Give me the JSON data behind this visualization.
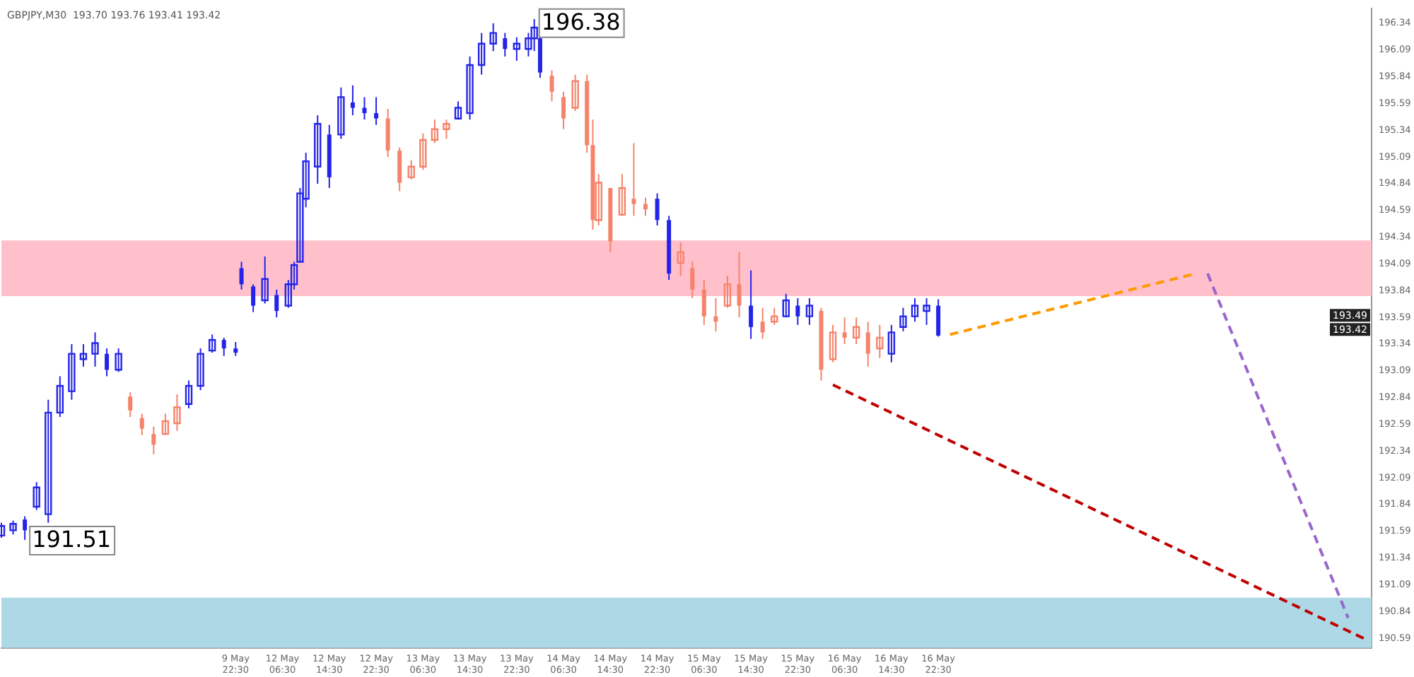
{
  "chart_data": {
    "type": "candlestick",
    "title": "GBPJPY,M30  193.70 193.76 193.41 193.42",
    "categories": [
      null,
      null,
      null,
      null,
      null,
      null,
      null,
      null,
      null,
      null,
      null,
      null,
      null,
      null,
      null,
      null,
      null,
      null,
      null,
      null,
      null,
      null,
      null,
      null,
      null,
      null,
      null,
      null,
      null,
      null,
      null,
      null,
      null,
      null,
      null,
      null,
      null,
      null,
      null,
      null,
      "9 May 22:30",
      null,
      null,
      null,
      null,
      null,
      null,
      null,
      "12 May 06:30",
      null,
      null,
      null,
      null,
      null,
      null,
      null,
      "12 May 14:30",
      null,
      null,
      null,
      null,
      null,
      null,
      null,
      "12 May 22:30",
      null,
      null,
      null,
      null,
      null,
      null,
      null,
      "13 May 06:30",
      null,
      null,
      null,
      null,
      null,
      null,
      null,
      "13 May 14:30",
      null,
      null,
      null,
      null,
      null,
      null,
      null,
      "13 May 22:30",
      null,
      null,
      null,
      null,
      null,
      null,
      null,
      "14 May 06:30",
      null,
      null,
      null,
      null,
      null,
      null,
      null,
      "14 May 14:30",
      null,
      null,
      null,
      null,
      null,
      null,
      null,
      "14 May 22:30",
      null,
      null,
      null,
      null,
      null,
      null,
      null,
      "15 May 06:30",
      null,
      null,
      null,
      null,
      null,
      null,
      null,
      "15 May 14:30",
      null,
      null,
      null,
      null,
      null,
      null,
      null,
      "15 May 22:30",
      null,
      null,
      null,
      null,
      null,
      null,
      null,
      "16 May 06:30",
      null,
      null,
      null,
      null,
      null,
      null,
      null,
      "16 May 14:30",
      null,
      null,
      null,
      null,
      null,
      null,
      null,
      "16 May 22:30",
      null,
      null,
      null,
      null,
      null,
      null,
      null,
      null,
      null,
      null,
      null,
      null,
      null,
      null,
      null,
      null,
      null,
      null,
      null,
      null,
      null,
      null,
      null,
      null,
      null,
      null,
      null,
      null,
      null,
      null,
      null,
      null,
      null,
      null,
      null,
      null,
      null,
      null,
      null,
      null,
      null,
      null,
      null,
      null,
      null,
      null,
      null,
      null,
      null,
      null,
      null,
      null,
      null,
      null,
      null,
      null,
      null,
      null,
      null,
      null,
      null,
      null,
      null,
      null,
      null,
      null,
      null,
      null,
      null,
      null,
      null,
      null,
      null,
      null
    ],
    "ohlc": [
      [
        191.55,
        191.67,
        191.53,
        191.64
      ],
      null,
      [
        191.6,
        191.69,
        191.56,
        191.66
      ],
      null,
      [
        191.7,
        191.73,
        191.51,
        191.6
      ],
      null,
      [
        191.82,
        192.05,
        191.79,
        192.0
      ],
      null,
      [
        191.75,
        192.82,
        191.67,
        192.7
      ],
      null,
      [
        192.7,
        193.04,
        192.66,
        192.95
      ],
      null,
      [
        192.9,
        193.34,
        192.82,
        193.25
      ],
      null,
      [
        193.2,
        193.34,
        193.13,
        193.25
      ],
      null,
      [
        193.25,
        193.45,
        193.13,
        193.35
      ],
      null,
      [
        193.25,
        193.3,
        193.04,
        193.1
      ],
      null,
      [
        193.1,
        193.3,
        193.08,
        193.25
      ],
      null,
      [
        192.85,
        192.89,
        192.66,
        192.72
      ],
      null,
      [
        192.65,
        192.69,
        192.49,
        192.55
      ],
      null,
      [
        192.5,
        192.57,
        192.31,
        192.4
      ],
      null,
      [
        192.5,
        192.69,
        192.49,
        192.62
      ],
      null,
      [
        192.6,
        192.87,
        192.53,
        192.75
      ],
      null,
      [
        192.78,
        193.0,
        192.74,
        192.95
      ],
      null,
      [
        192.95,
        193.3,
        192.91,
        193.25
      ],
      null,
      [
        193.28,
        193.43,
        193.26,
        193.38
      ],
      null,
      [
        193.38,
        193.4,
        193.23,
        193.3
      ],
      null,
      [
        193.3,
        193.36,
        193.23,
        193.26
      ],
      [
        194.05,
        194.11,
        193.85,
        193.9
      ],
      null,
      [
        193.88,
        193.9,
        193.64,
        193.7
      ],
      null,
      [
        193.75,
        194.16,
        193.72,
        193.95
      ],
      null,
      [
        193.8,
        193.85,
        193.59,
        193.65
      ],
      null,
      [
        193.7,
        193.94,
        193.68,
        193.9
      ],
      [
        193.9,
        194.11,
        193.85,
        194.08
      ],
      [
        194.11,
        194.8,
        194.11,
        194.75
      ],
      [
        194.7,
        195.13,
        194.62,
        195.05
      ],
      null,
      [
        195.0,
        195.48,
        194.84,
        195.4
      ],
      null,
      [
        195.3,
        195.39,
        194.8,
        194.9
      ],
      null,
      [
        195.3,
        195.74,
        195.26,
        195.65
      ],
      null,
      [
        195.6,
        195.76,
        195.48,
        195.55
      ],
      null,
      [
        195.55,
        195.65,
        195.44,
        195.5
      ],
      null,
      [
        195.5,
        195.65,
        195.39,
        195.45
      ],
      null,
      [
        195.45,
        195.54,
        195.09,
        195.15
      ],
      null,
      [
        195.15,
        195.18,
        194.77,
        194.85
      ],
      null,
      [
        194.9,
        195.06,
        194.88,
        195.0
      ],
      null,
      [
        195.0,
        195.31,
        194.97,
        195.25
      ],
      null,
      [
        195.25,
        195.44,
        195.22,
        195.35
      ],
      null,
      [
        195.35,
        195.44,
        195.26,
        195.4
      ],
      null,
      [
        195.45,
        195.61,
        195.44,
        195.55
      ],
      null,
      [
        195.5,
        196.03,
        195.44,
        195.95
      ],
      null,
      [
        195.95,
        196.25,
        195.86,
        196.15
      ],
      null,
      [
        196.15,
        196.34,
        196.08,
        196.25
      ],
      null,
      [
        196.2,
        196.25,
        196.03,
        196.1
      ],
      null,
      [
        196.1,
        196.21,
        195.99,
        196.15
      ],
      null,
      [
        196.1,
        196.25,
        196.03,
        196.2
      ],
      [
        196.2,
        196.38,
        196.08,
        196.3
      ],
      [
        196.2,
        196.21,
        195.83,
        195.88
      ],
      null,
      [
        195.85,
        195.9,
        195.61,
        195.7
      ],
      null,
      [
        195.65,
        195.7,
        195.35,
        195.45
      ],
      null,
      [
        195.55,
        195.86,
        195.52,
        195.8
      ],
      null,
      [
        195.8,
        195.86,
        195.13,
        195.2
      ],
      [
        195.2,
        195.44,
        194.41,
        194.5
      ],
      [
        194.5,
        194.93,
        194.45,
        194.85
      ],
      null,
      [
        194.8,
        194.8,
        194.2,
        194.3
      ],
      null,
      [
        194.55,
        194.93,
        194.54,
        194.8
      ],
      null,
      [
        194.7,
        195.22,
        194.54,
        194.65
      ],
      null,
      [
        194.65,
        194.71,
        194.54,
        194.6
      ],
      null,
      [
        194.7,
        194.75,
        194.45,
        194.5
      ],
      null,
      [
        194.5,
        194.54,
        193.94,
        194.0
      ],
      null,
      [
        194.1,
        194.29,
        193.98,
        194.2
      ],
      null,
      [
        194.05,
        194.11,
        193.77,
        193.85
      ],
      null,
      [
        193.85,
        193.94,
        193.52,
        193.6
      ],
      null,
      [
        193.6,
        193.77,
        193.46,
        193.55
      ],
      null,
      [
        193.7,
        193.98,
        193.68,
        193.9
      ],
      null,
      [
        193.9,
        194.2,
        193.59,
        193.7
      ],
      null,
      [
        193.7,
        194.03,
        193.39,
        193.5
      ],
      null,
      [
        193.55,
        193.68,
        193.39,
        193.45
      ],
      null,
      [
        193.55,
        193.68,
        193.52,
        193.6
      ],
      null,
      [
        193.6,
        193.81,
        193.59,
        193.75
      ],
      null,
      [
        193.7,
        193.77,
        193.52,
        193.6
      ],
      null,
      [
        193.6,
        193.77,
        193.52,
        193.7
      ],
      null,
      [
        193.65,
        193.68,
        193.0,
        193.1
      ],
      null,
      [
        193.2,
        193.52,
        193.17,
        193.45
      ],
      null,
      [
        193.45,
        193.59,
        193.34,
        193.4
      ],
      null,
      [
        193.4,
        193.59,
        193.34,
        193.5
      ],
      null,
      [
        193.45,
        193.55,
        193.13,
        193.25
      ],
      null,
      [
        193.3,
        193.52,
        193.21,
        193.4
      ],
      null,
      [
        193.25,
        193.52,
        193.17,
        193.45
      ],
      null,
      [
        193.5,
        193.68,
        193.46,
        193.6
      ],
      null,
      [
        193.6,
        193.77,
        193.55,
        193.7
      ],
      null,
      [
        193.65,
        193.77,
        193.52,
        193.7
      ],
      null,
      [
        193.7,
        193.76,
        193.41,
        193.42
      ],
      null,
      null,
      null,
      null,
      null,
      null,
      null,
      null,
      null,
      null,
      null,
      null,
      null,
      null,
      null,
      null,
      null,
      null,
      null,
      null,
      null,
      null,
      null,
      null,
      null,
      null,
      null,
      null,
      null,
      null,
      null,
      null,
      null,
      null,
      null,
      null,
      null,
      null,
      null,
      null,
      null,
      null,
      null,
      null,
      null,
      null,
      null,
      null,
      null,
      null,
      null,
      null,
      null,
      null,
      null,
      null,
      null,
      null,
      null,
      null,
      null,
      null,
      null,
      null,
      null,
      null,
      null,
      null,
      null,
      null,
      null,
      null,
      null,
      null
    ],
    "colors": [
      "#2424e8",
      null,
      "#2424e8",
      null,
      "#2424e8",
      null,
      "#2424e8",
      null,
      "#2424e8",
      null,
      "#2424e8",
      null,
      "#2424e8",
      null,
      "#2424e8",
      null,
      "#2424e8",
      null,
      "#2424e8",
      null,
      "#2424e8",
      null,
      "#f5836b",
      null,
      "#f5836b",
      null,
      "#f5836b",
      null,
      "#f5836b",
      null,
      "#f5836b",
      null,
      "#2424e8",
      null,
      "#2424e8",
      null,
      "#2424e8",
      null,
      "#2424e8",
      null,
      "#2424e8",
      "#2424e8",
      null,
      "#2424e8",
      null,
      "#2424e8",
      null,
      "#2424e8",
      null,
      "#2424e8",
      "#2424e8",
      "#2424e8",
      "#2424e8",
      null,
      "#2424e8",
      null,
      "#2424e8",
      null,
      "#2424e8",
      null,
      "#2424e8",
      null,
      "#2424e8",
      null,
      "#2424e8",
      null,
      "#f5836b",
      null,
      "#f5836b",
      null,
      "#f5836b",
      null,
      "#f5836b",
      null,
      "#f5836b",
      null,
      "#f5836b",
      null,
      "#2424e8",
      null,
      "#2424e8",
      null,
      "#2424e8",
      null,
      "#2424e8",
      null,
      "#2424e8",
      null,
      "#2424e8",
      null,
      "#2424e8",
      "#2424e8",
      "#2424e8",
      null,
      "#f5836b",
      null,
      "#f5836b",
      null,
      "#f5836b",
      null,
      "#f5836b",
      "#f5836b",
      "#f5836b",
      null,
      "#f5836b",
      null,
      "#f5836b",
      null,
      "#f5836b",
      null,
      "#f5836b",
      null,
      "#2424e8",
      null,
      "#2424e8",
      null,
      "#f5836b",
      null,
      "#f5836b",
      null,
      "#f5836b",
      null,
      "#f5836b",
      null,
      "#f5836b",
      null,
      "#f5836b",
      null,
      "#2424e8",
      null,
      "#f5836b",
      null,
      "#f5836b",
      null,
      "#2424e8",
      null,
      "#2424e8",
      null,
      "#2424e8",
      null,
      "#f5836b",
      null,
      "#f5836b",
      null,
      "#f5836b",
      null,
      "#f5836b",
      null,
      "#f5836b",
      null,
      "#f5836b",
      null,
      "#2424e8",
      null,
      "#2424e8",
      null,
      "#2424e8",
      null,
      "#2424e8",
      null,
      "#2424e8",
      null,
      null,
      null,
      null,
      null,
      null,
      null,
      null,
      null,
      null,
      null,
      null,
      null,
      null,
      null,
      null,
      null,
      null,
      null,
      null,
      null,
      null,
      null,
      null,
      null,
      null,
      null,
      null,
      null,
      null,
      null,
      null,
      null,
      null,
      null,
      null,
      null,
      null,
      null,
      null,
      null,
      null,
      null,
      null,
      null,
      null,
      null,
      null,
      null,
      null,
      null,
      null,
      null,
      null,
      null,
      null,
      null,
      null,
      null,
      null,
      null,
      null,
      null,
      null,
      null,
      null,
      null,
      null,
      null,
      null,
      null,
      null,
      null,
      null
    ],
    "series": [
      {
        "type": "line",
        "color": "#ff9900",
        "line_style": "dashed",
        "values": [
          null,
          null,
          null,
          null,
          null,
          null,
          null,
          null,
          null,
          null,
          null,
          null,
          null,
          null,
          null,
          null,
          null,
          null,
          null,
          null,
          null,
          null,
          null,
          null,
          null,
          null,
          null,
          null,
          null,
          null,
          null,
          null,
          null,
          null,
          null,
          null,
          null,
          null,
          null,
          null,
          null,
          null,
          null,
          null,
          null,
          null,
          null,
          null,
          null,
          null,
          null,
          null,
          null,
          null,
          null,
          null,
          null,
          null,
          null,
          null,
          null,
          null,
          null,
          null,
          null,
          null,
          null,
          null,
          null,
          null,
          null,
          null,
          null,
          null,
          null,
          null,
          null,
          null,
          null,
          null,
          null,
          null,
          null,
          null,
          null,
          null,
          null,
          null,
          null,
          null,
          null,
          null,
          null,
          null,
          null,
          null,
          null,
          null,
          null,
          null,
          null,
          null,
          null,
          null,
          null,
          null,
          null,
          null,
          null,
          null,
          null,
          null,
          null,
          null,
          null,
          null,
          null,
          null,
          null,
          null,
          null,
          null,
          null,
          null,
          null,
          null,
          null,
          null,
          null,
          null,
          null,
          null,
          null,
          null,
          null,
          null,
          null,
          null,
          null,
          null,
          null,
          null,
          null,
          null,
          null,
          null,
          null,
          null,
          null,
          null,
          null,
          null,
          null,
          null,
          null,
          null,
          null,
          null,
          null,
          null,
          null,
          null,
          193.43,
          null,
          null,
          null,
          null,
          null,
          null,
          null,
          null,
          null,
          null,
          null,
          null,
          null,
          null,
          null,
          null,
          null,
          null,
          null,
          null,
          null,
          null,
          null,
          null,
          null,
          null,
          null,
          null,
          null,
          null,
          null,
          null,
          null,
          null,
          null,
          null,
          null,
          null,
          null,
          null,
          null,
          194.0,
          null,
          null,
          null,
          null,
          null,
          null,
          null,
          null,
          null,
          null,
          null,
          null,
          null,
          null,
          null,
          null,
          null,
          null,
          null,
          null,
          null,
          null,
          null,
          null,
          null,
          null,
          null,
          null,
          null,
          null
        ]
      },
      {
        "type": "line",
        "color": "#9966cc",
        "line_style": "dashed",
        "values": [
          null,
          null,
          null,
          null,
          null,
          null,
          null,
          null,
          null,
          null,
          null,
          null,
          null,
          null,
          null,
          null,
          null,
          null,
          null,
          null,
          null,
          null,
          null,
          null,
          null,
          null,
          null,
          null,
          null,
          null,
          null,
          null,
          null,
          null,
          null,
          null,
          null,
          null,
          null,
          null,
          null,
          null,
          null,
          null,
          null,
          null,
          null,
          null,
          null,
          null,
          null,
          null,
          null,
          null,
          null,
          null,
          null,
          null,
          null,
          null,
          null,
          null,
          null,
          null,
          null,
          null,
          null,
          null,
          null,
          null,
          null,
          null,
          null,
          null,
          null,
          null,
          null,
          null,
          null,
          null,
          null,
          null,
          null,
          null,
          null,
          null,
          null,
          null,
          null,
          null,
          null,
          null,
          null,
          null,
          null,
          null,
          null,
          null,
          null,
          null,
          null,
          null,
          null,
          null,
          null,
          null,
          null,
          null,
          null,
          null,
          null,
          null,
          null,
          null,
          null,
          null,
          null,
          null,
          null,
          null,
          null,
          null,
          null,
          null,
          null,
          null,
          null,
          null,
          null,
          null,
          null,
          null,
          null,
          null,
          null,
          null,
          null,
          null,
          null,
          null,
          null,
          null,
          null,
          null,
          null,
          null,
          null,
          null,
          null,
          null,
          null,
          null,
          null,
          null,
          null,
          null,
          null,
          null,
          null,
          null,
          null,
          null,
          null,
          null,
          null,
          null,
          null,
          null,
          null,
          null,
          null,
          null,
          null,
          null,
          null,
          null,
          null,
          null,
          null,
          null,
          null,
          null,
          null,
          null,
          null,
          null,
          null,
          null,
          null,
          null,
          null,
          null,
          null,
          null,
          null,
          null,
          null,
          null,
          null,
          null,
          null,
          null,
          null,
          null,
          null,
          null,
          194.0,
          null,
          null,
          null,
          null,
          null,
          null,
          null,
          null,
          null,
          null,
          null,
          null,
          null,
          null,
          null,
          null,
          null,
          null,
          null,
          null,
          null,
          null,
          null,
          190.78,
          null,
          null,
          null,
          null
        ]
      },
      {
        "type": "line",
        "color": "#c00000",
        "line_style": "dashed",
        "values": [
          null,
          null,
          null,
          null,
          null,
          null,
          null,
          null,
          null,
          null,
          null,
          null,
          null,
          null,
          null,
          null,
          null,
          null,
          null,
          null,
          null,
          null,
          null,
          null,
          null,
          null,
          null,
          null,
          null,
          null,
          null,
          null,
          null,
          null,
          null,
          null,
          null,
          null,
          null,
          null,
          null,
          null,
          null,
          null,
          null,
          null,
          null,
          null,
          null,
          null,
          null,
          null,
          null,
          null,
          null,
          null,
          null,
          null,
          null,
          null,
          null,
          null,
          null,
          null,
          null,
          null,
          null,
          null,
          null,
          null,
          null,
          null,
          null,
          null,
          null,
          null,
          null,
          null,
          null,
          null,
          null,
          null,
          null,
          null,
          null,
          null,
          null,
          null,
          null,
          null,
          null,
          null,
          null,
          null,
          null,
          null,
          null,
          null,
          null,
          null,
          null,
          null,
          null,
          null,
          null,
          null,
          null,
          null,
          null,
          null,
          null,
          null,
          null,
          null,
          null,
          null,
          null,
          null,
          null,
          null,
          null,
          null,
          null,
          null,
          null,
          null,
          null,
          null,
          null,
          null,
          null,
          null,
          null,
          null,
          null,
          null,
          null,
          null,
          null,
          null,
          null,
          null,
          192.96,
          null,
          null,
          null,
          null,
          null,
          null,
          null,
          null,
          null,
          null,
          null,
          null,
          null,
          null,
          null,
          null,
          null,
          null,
          null,
          null,
          null,
          null,
          null,
          null,
          null,
          null,
          null,
          null,
          null,
          null,
          null,
          null,
          null,
          null,
          null,
          null,
          null,
          null,
          null,
          null,
          null,
          null,
          null,
          null,
          null,
          null,
          null,
          null,
          null,
          null,
          null,
          null,
          null,
          null,
          null,
          null,
          null,
          null,
          null,
          null,
          null,
          null,
          null,
          null,
          null,
          null,
          null,
          null,
          null,
          null,
          null,
          null,
          null,
          null,
          null,
          null,
          null,
          null,
          null,
          null,
          null,
          null,
          null,
          null,
          null,
          null,
          null,
          null,
          null,
          null,
          190.58,
          null
        ]
      }
    ],
    "bands": [
      {
        "axis": "y",
        "from": 193.79,
        "to": 194.31,
        "color": "#ffc0cb"
      },
      {
        "axis": "y",
        "from": 190.5,
        "to": 190.97,
        "color": "#add8e6"
      }
    ],
    "annotations": [
      "196.38",
      "191.51",
      "193.49",
      "193.42"
    ],
    "ylim": [
      190.5,
      196.48
    ],
    "yticks": [
      190.59,
      190.84,
      191.09,
      191.34,
      191.59,
      191.84,
      192.09,
      192.34,
      192.59,
      192.84,
      193.09,
      193.34,
      193.59,
      193.84,
      194.09,
      194.34,
      194.59,
      194.84,
      195.09,
      195.34,
      195.59,
      195.84,
      196.09,
      196.34
    ],
    "grid": false,
    "legend": false,
    "marker": "none"
  }
}
